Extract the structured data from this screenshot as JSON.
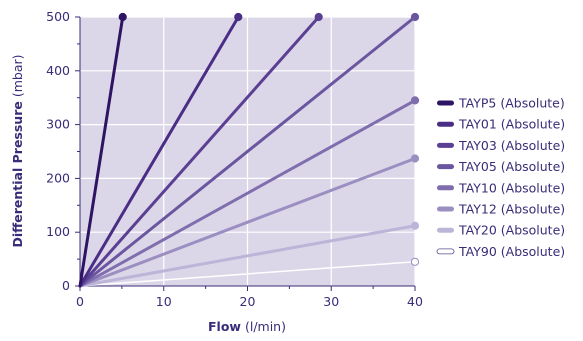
{
  "chart_data": {
    "type": "line",
    "xlabel": {
      "main": "Flow",
      "unit": "(l/min)"
    },
    "ylabel": {
      "main": "Differential Pressure",
      "unit": "(mbar)"
    },
    "xlim": [
      0,
      40
    ],
    "ylim": [
      0,
      500
    ],
    "xticks": [
      0,
      10,
      20,
      30,
      40
    ],
    "yticks": [
      0,
      100,
      200,
      300,
      400,
      500
    ],
    "grid": true,
    "legend_position": "right",
    "colors": {
      "plot_background": "#dcd7e8",
      "grid": "#ffffff",
      "axis": "#3a2c78",
      "text": "#3a2c78"
    },
    "series": [
      {
        "name": "TAYP5 (Absolute)",
        "color": "#2e1463",
        "x": [
          0,
          5.1
        ],
        "y": [
          0,
          500
        ]
      },
      {
        "name": "TAY01 (Absolute)",
        "color": "#4a2d85",
        "x": [
          0,
          18.9
        ],
        "y": [
          0,
          500
        ]
      },
      {
        "name": "TAY03 (Absolute)",
        "color": "#5b3f93",
        "x": [
          0,
          28.5
        ],
        "y": [
          0,
          500
        ]
      },
      {
        "name": "TAY05 (Absolute)",
        "color": "#6a559f",
        "x": [
          0,
          40
        ],
        "y": [
          0,
          500
        ]
      },
      {
        "name": "TAY10 (Absolute)",
        "color": "#7f6dae",
        "x": [
          0,
          40
        ],
        "y": [
          0,
          345
        ]
      },
      {
        "name": "TAY12 (Absolute)",
        "color": "#9b8fc2",
        "x": [
          0,
          40
        ],
        "y": [
          0,
          237
        ]
      },
      {
        "name": "TAY20 (Absolute)",
        "color": "#bdb5d8",
        "x": [
          0,
          40
        ],
        "y": [
          0,
          112
        ]
      },
      {
        "name": "TAY90 (Absolute)",
        "color": "#ffffff",
        "x": [
          0,
          40
        ],
        "y": [
          0,
          45
        ]
      }
    ]
  }
}
